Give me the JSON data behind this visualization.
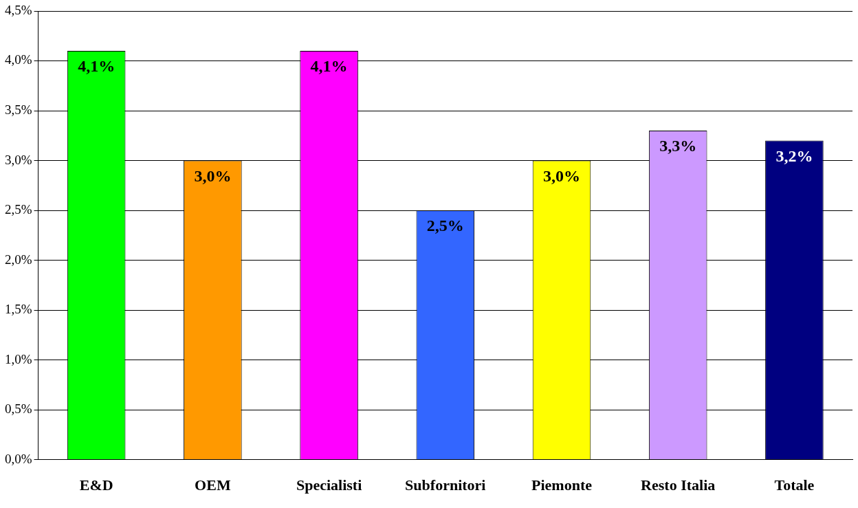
{
  "chart_data": {
    "type": "bar",
    "categories": [
      "E&D",
      "OEM",
      "Specialisti",
      "Subfornitori",
      "Piemonte",
      "Resto Italia",
      "Totale"
    ],
    "values": [
      4.1,
      3.0,
      4.1,
      2.5,
      3.0,
      3.3,
      3.2
    ],
    "colors": [
      "#00ff00",
      "#ff9900",
      "#ff00ff",
      "#3366ff",
      "#ffff00",
      "#cc99ff",
      "#000080"
    ],
    "value_labels": [
      "4,1%",
      "3,0%",
      "4,1%",
      "2,5%",
      "3,0%",
      "3,3%",
      "3,2%"
    ],
    "ylim": [
      0,
      4.5
    ],
    "yticks": [
      {
        "value": 0,
        "label": "0,0%"
      },
      {
        "value": 0.5,
        "label": "0,5%"
      },
      {
        "value": 1,
        "label": "1,0%"
      },
      {
        "value": 1.5,
        "label": "1,5%"
      },
      {
        "value": 2,
        "label": "2,0%"
      },
      {
        "value": 2.5,
        "label": "2,5%"
      },
      {
        "value": 3,
        "label": "3,0%"
      },
      {
        "value": 3.5,
        "label": "3,5%"
      },
      {
        "value": 4,
        "label": "4,0%"
      },
      {
        "value": 4.5,
        "label": "4,5%"
      }
    ],
    "grid": "y",
    "legend": false
  }
}
